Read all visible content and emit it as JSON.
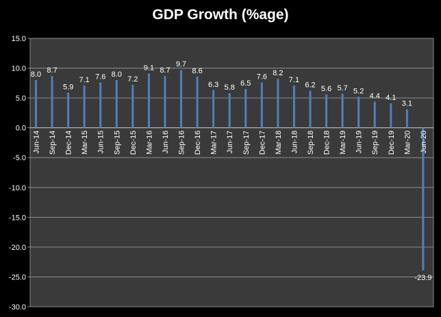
{
  "chart_data": {
    "type": "bar",
    "title": "GDP Growth (%age)",
    "xlabel": "",
    "ylabel": "",
    "ylim": [
      -30,
      15
    ],
    "y_ticks": [
      "15.0",
      "10.0",
      "5.0",
      "0.0",
      "-5.0",
      "-10.0",
      "-15.0",
      "-20.0",
      "-25.0",
      "-30.0"
    ],
    "y_tick_values": [
      15,
      10,
      5,
      0,
      -5,
      -10,
      -15,
      -20,
      -25,
      -30
    ],
    "categories": [
      "Jun-14",
      "Sep-14",
      "Dec-14",
      "Mar-15",
      "Jun-15",
      "Sep-15",
      "Dec-15",
      "Mar-16",
      "Jun-16",
      "Sep-16",
      "Dec-16",
      "Mar-17",
      "Jun-17",
      "Sep-17",
      "Dec-17",
      "Mar-18",
      "Jun-18",
      "Sep-18",
      "Dec-18",
      "Mar-19",
      "Jun-19",
      "Sep-19",
      "Dec-19",
      "Mar-20",
      "Jun-20"
    ],
    "values": [
      8.0,
      8.7,
      5.9,
      7.1,
      7.6,
      8.0,
      7.2,
      9.1,
      8.7,
      9.7,
      8.6,
      6.3,
      5.8,
      6.5,
      7.6,
      8.2,
      7.1,
      6.2,
      5.6,
      5.7,
      5.2,
      4.4,
      4.1,
      3.1,
      -23.9
    ],
    "data_labels": [
      "8.0",
      "8.7",
      "5.9",
      "7.1",
      "7.6",
      "8.0",
      "7.2",
      "9.1",
      "8.7",
      "9.7",
      "8.6",
      "6.3",
      "5.8",
      "6.5",
      "7.6",
      "8.2",
      "7.1",
      "6.2",
      "5.6",
      "5.7",
      "5.2",
      "4.4",
      "4.1",
      "3.1",
      "-23.9"
    ],
    "grid": true,
    "legend": "none",
    "colors": {
      "background": "#000000",
      "plot_area": "#3a3a3a",
      "bar": "#4f81bd",
      "gridline": "#8c8c8c",
      "text": "#ffffff"
    }
  }
}
